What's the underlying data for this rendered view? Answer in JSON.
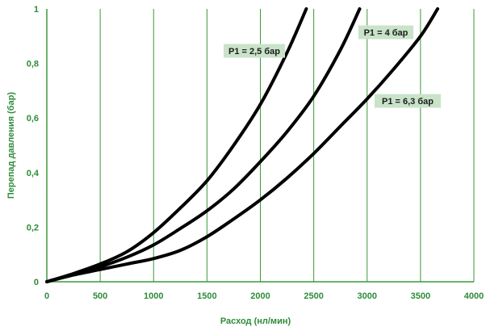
{
  "chart_data": {
    "type": "line",
    "xlabel": "Расход (нл/мин)",
    "ylabel": "Перепад давления (бар)",
    "xlim": [
      0,
      4000
    ],
    "ylim": [
      0,
      1
    ],
    "x_ticks": [
      "0",
      "500",
      "1000",
      "1500",
      "2000",
      "2500",
      "3000",
      "3500",
      "4000"
    ],
    "y_ticks": [
      "0",
      "0,2",
      "0,4",
      "0,6",
      "0,8",
      "1"
    ],
    "grid": "vertical",
    "colors": {
      "axis_text": "#2e8b3a",
      "grid": "#3a9a3a",
      "line": "#000000",
      "label_bg": "#c9e3c9"
    },
    "series": [
      {
        "name": "P1 = 2,5 бар",
        "x": [
          0,
          250,
          500,
          750,
          1000,
          1250,
          1500,
          1750,
          2000,
          2250,
          2430
        ],
        "y": [
          0,
          0.03,
          0.065,
          0.11,
          0.18,
          0.27,
          0.37,
          0.5,
          0.65,
          0.84,
          1.0
        ]
      },
      {
        "name": "P1 = 4 бар",
        "x": [
          0,
          250,
          500,
          750,
          1000,
          1250,
          1500,
          1750,
          2000,
          2250,
          2500,
          2750,
          2930
        ],
        "y": [
          0,
          0.028,
          0.055,
          0.09,
          0.135,
          0.195,
          0.26,
          0.34,
          0.44,
          0.55,
          0.68,
          0.85,
          1.0
        ]
      },
      {
        "name": "P1 = 6,3 бар",
        "x": [
          0,
          250,
          500,
          750,
          1000,
          1250,
          1500,
          1750,
          2000,
          2250,
          2500,
          2750,
          3000,
          3250,
          3500,
          3660
        ],
        "y": [
          0,
          0.025,
          0.045,
          0.065,
          0.085,
          0.115,
          0.165,
          0.23,
          0.3,
          0.38,
          0.47,
          0.57,
          0.67,
          0.78,
          0.9,
          1.0
        ]
      }
    ],
    "annotations": [
      {
        "text": "P1 = 2,5 бар",
        "series": 0
      },
      {
        "text": "P1 = 4 бар",
        "series": 1
      },
      {
        "text": "P1 = 6,3 бар",
        "series": 2
      }
    ]
  }
}
